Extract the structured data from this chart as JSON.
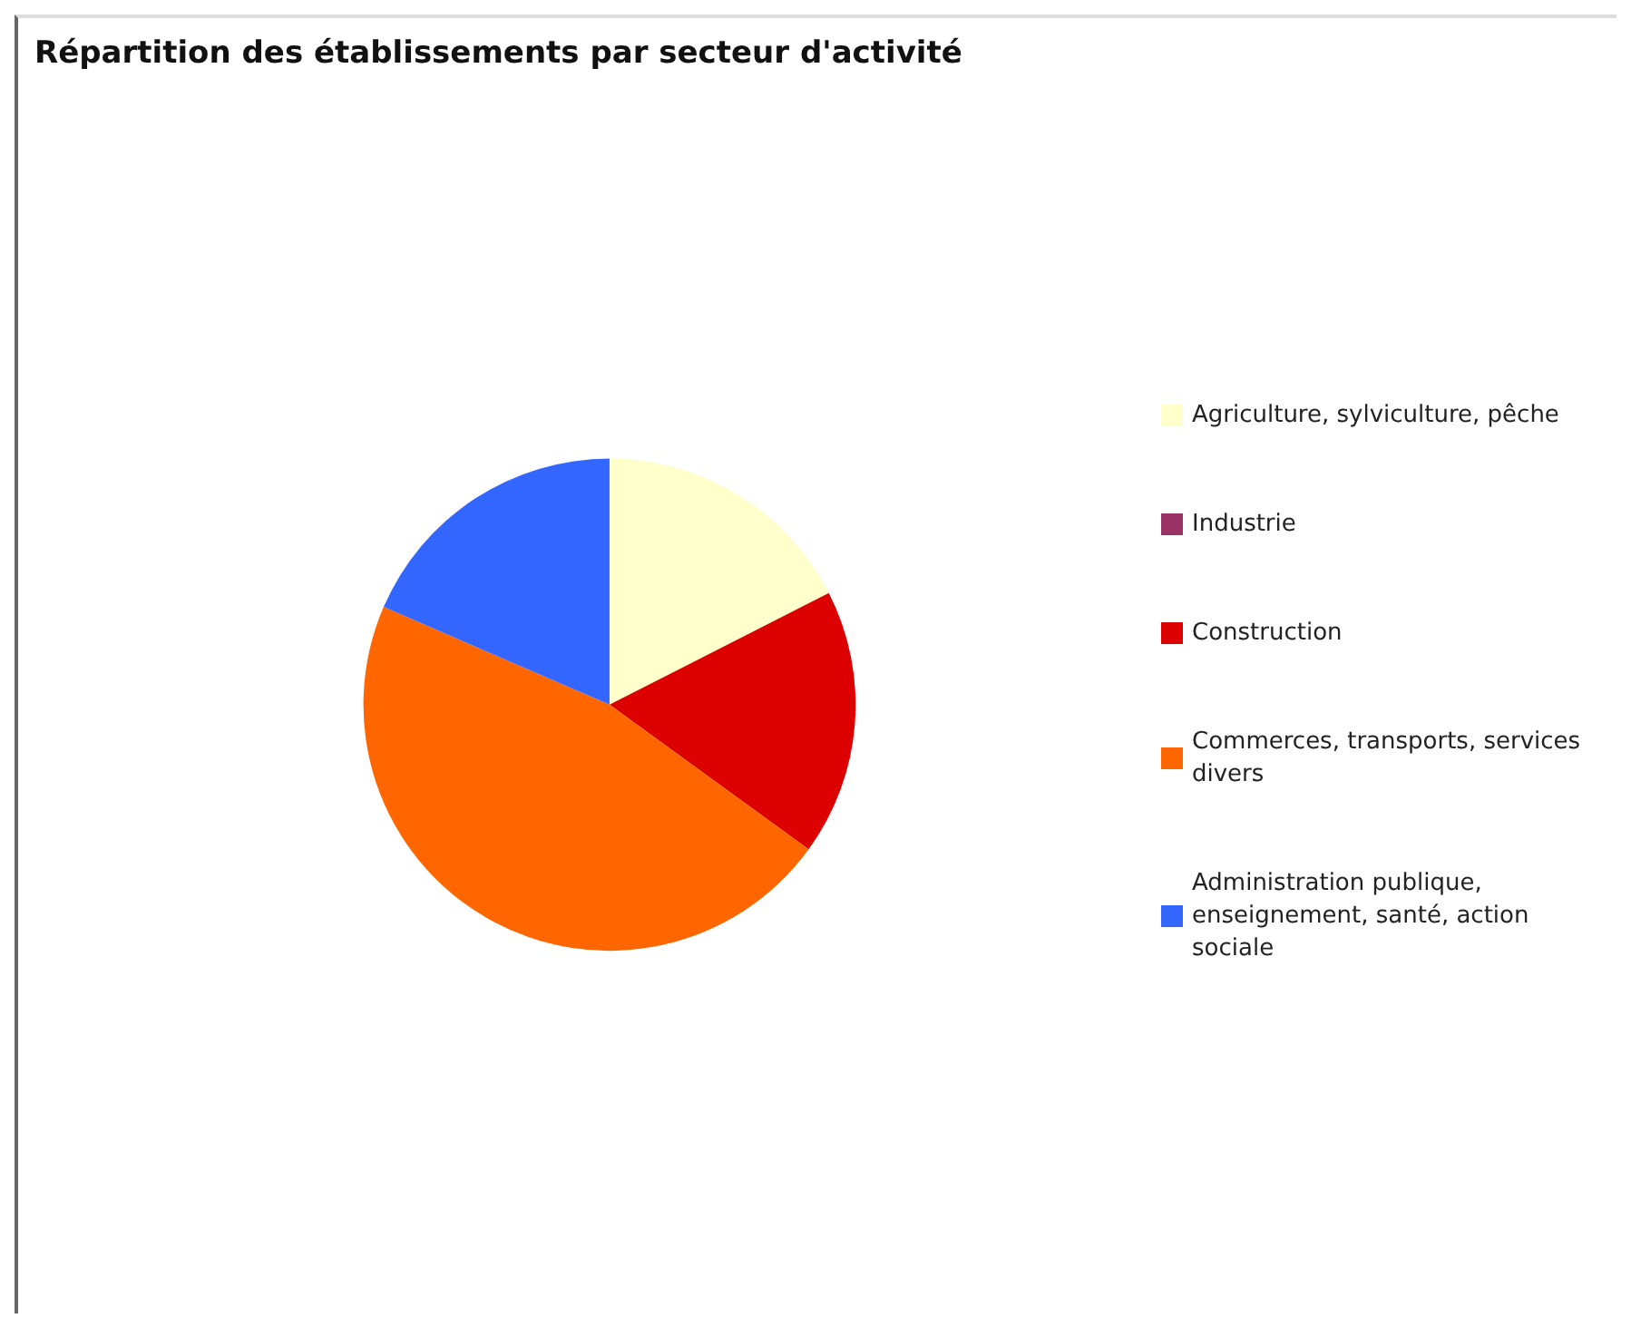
{
  "chart_data": {
    "type": "pie",
    "title": "Répartition des établissements par secteur d'activité",
    "categories": [
      "Agriculture, sylviculture, pêche",
      "Industrie",
      "Construction",
      "Commerces, transports, services divers",
      "Administration publique, enseignement, santé, action sociale"
    ],
    "values": [
      17.5,
      0,
      17.5,
      46.5,
      18.5
    ],
    "colors": [
      "#ffffcc",
      "#993366",
      "#dd0000",
      "#ff6600",
      "#3366ff"
    ],
    "legend": "right"
  }
}
